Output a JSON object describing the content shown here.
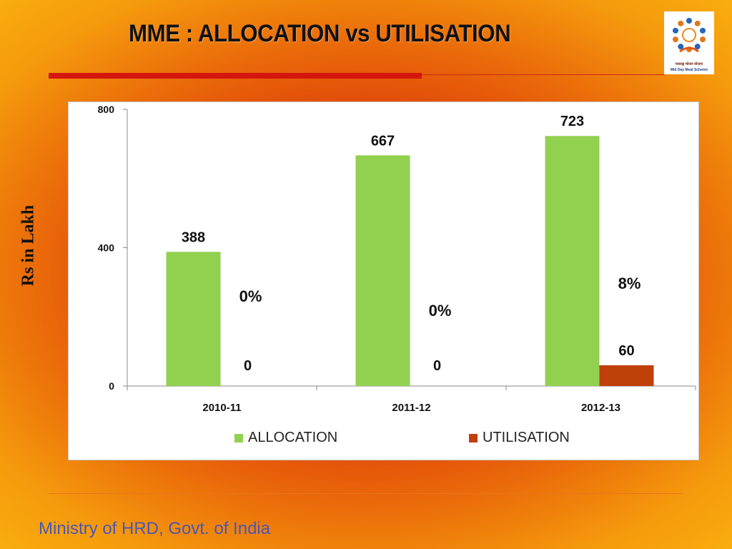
{
  "slide": {
    "title": "MME : ALLOCATION vs UTILISATION",
    "ylabel": "Rs in Lakh",
    "footer": "Ministry of HRD, Govt. of India",
    "logo": {
      "icon": "mid-day-meal-logo",
      "line1": "मध्याह्न भोजन योजना",
      "line2": "Mid Day Meal Scheme"
    }
  },
  "colors": {
    "allocation": "#92d050",
    "utilisation": "#c0400a"
  },
  "chart_data": {
    "type": "bar",
    "categories": [
      "2010-11",
      "2011-12",
      "2012-13"
    ],
    "series": [
      {
        "name": "ALLOCATION",
        "values": [
          388,
          667,
          723
        ]
      },
      {
        "name": "UTILISATION",
        "values": [
          0,
          0,
          60
        ]
      }
    ],
    "data_labels": {
      "ALLOCATION": [
        "388",
        "667",
        "723"
      ],
      "UTILISATION": [
        "0",
        "0",
        "60"
      ]
    },
    "percent_labels": [
      "0%",
      "0%",
      "8%"
    ],
    "ylim": [
      0,
      800
    ],
    "yticks": [
      0,
      400,
      800
    ],
    "xlabel": "",
    "ylabel": "Rs in Lakh",
    "grid": false,
    "legend": "bottom"
  }
}
